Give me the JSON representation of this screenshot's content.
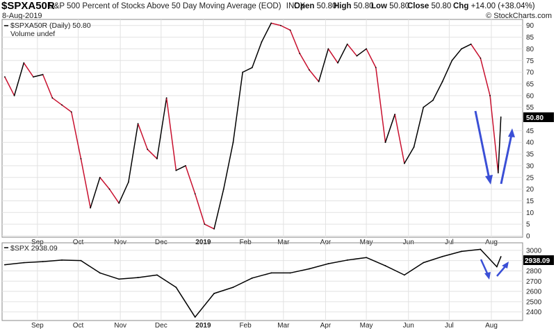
{
  "header": {
    "symbol": "$SPXA50R",
    "description": "S&P 500 Percent of Stocks Above 50 Day Moving Average (EOD)",
    "exchange": "INDX",
    "date": "8-Aug-2019",
    "open_label": "Open",
    "open": "50.80",
    "high_label": "High",
    "high": "50.80",
    "low_label": "Low",
    "low": "50.80",
    "close_label": "Close",
    "close": "50.80",
    "chg_label": "Chg",
    "chg": "+14.00 (+38.04%)",
    "watermark": "© StockCharts.com"
  },
  "colors": {
    "up": "#000000",
    "down": "#c8102e",
    "arrow": "#3a4fd6",
    "grid": "#e2e2e2",
    "price_box": "#000000"
  },
  "chart_data": [
    {
      "type": "line",
      "legend": [
        "$SPXA50R (Daily) 50.80",
        "Volume undef"
      ],
      "last_value": "50.80",
      "ylim": [
        0,
        92
      ],
      "y_ticks": [
        0,
        5,
        10,
        15,
        20,
        25,
        30,
        35,
        40,
        45,
        50,
        55,
        60,
        65,
        70,
        75,
        80,
        85,
        90
      ],
      "x_labels": [
        "Sep",
        "Oct",
        "Nov",
        "Dec",
        "2019",
        "Feb",
        "Mar",
        "Apr",
        "May",
        "Jun",
        "Jul",
        "Aug"
      ],
      "x": [
        "2018-08-08",
        "2018-08-15",
        "2018-08-22",
        "2018-08-29",
        "2018-09-05",
        "2018-09-12",
        "2018-09-19",
        "2018-09-26",
        "2018-10-03",
        "2018-10-10",
        "2018-10-17",
        "2018-10-24",
        "2018-10-31",
        "2018-11-07",
        "2018-11-14",
        "2018-11-21",
        "2018-11-28",
        "2018-12-05",
        "2018-12-12",
        "2018-12-19",
        "2018-12-26",
        "2019-01-02",
        "2019-01-09",
        "2019-01-16",
        "2019-01-23",
        "2019-01-30",
        "2019-02-06",
        "2019-02-13",
        "2019-02-20",
        "2019-02-27",
        "2019-03-06",
        "2019-03-13",
        "2019-03-20",
        "2019-03-27",
        "2019-04-03",
        "2019-04-10",
        "2019-04-17",
        "2019-04-24",
        "2019-05-01",
        "2019-05-08",
        "2019-05-15",
        "2019-05-22",
        "2019-05-29",
        "2019-06-05",
        "2019-06-12",
        "2019-06-19",
        "2019-06-26",
        "2019-07-03",
        "2019-07-10",
        "2019-07-17",
        "2019-07-24",
        "2019-07-31",
        "2019-08-06",
        "2019-08-08"
      ],
      "values": [
        68,
        60,
        74,
        68,
        69,
        59,
        56,
        53,
        33,
        12,
        25,
        20,
        14,
        23,
        48,
        37,
        33,
        59,
        28,
        30,
        18,
        5,
        3,
        20,
        40,
        70,
        72,
        83,
        91,
        90,
        88,
        78,
        71,
        66,
        80,
        74,
        82,
        77,
        80,
        72,
        40,
        52,
        31,
        38,
        55,
        58,
        66,
        75,
        80,
        82,
        76,
        60,
        27,
        50.8
      ]
    },
    {
      "type": "line",
      "legend": [
        "$SPX 2938.09"
      ],
      "last_value": "2938.09",
      "ylim": [
        2330,
        3060
      ],
      "y_ticks": [
        2400,
        2500,
        2600,
        2700,
        2800,
        2900,
        3000
      ],
      "x_labels": [
        "Sep",
        "Oct",
        "Nov",
        "Dec",
        "2019",
        "Feb",
        "Mar",
        "Apr",
        "May",
        "Jun",
        "Jul",
        "Aug"
      ],
      "x": [
        "2018-08-08",
        "2018-08-22",
        "2018-09-05",
        "2018-09-19",
        "2018-10-03",
        "2018-10-17",
        "2018-10-31",
        "2018-11-14",
        "2018-11-28",
        "2018-12-12",
        "2018-12-26",
        "2019-01-09",
        "2019-01-23",
        "2019-02-06",
        "2019-02-20",
        "2019-03-06",
        "2019-03-20",
        "2019-04-03",
        "2019-04-17",
        "2019-05-01",
        "2019-05-15",
        "2019-05-29",
        "2019-06-12",
        "2019-06-26",
        "2019-07-10",
        "2019-07-24",
        "2019-08-05",
        "2019-08-08"
      ],
      "values": [
        2860,
        2880,
        2890,
        2905,
        2900,
        2780,
        2720,
        2735,
        2760,
        2640,
        2350,
        2580,
        2640,
        2730,
        2780,
        2780,
        2820,
        2870,
        2905,
        2930,
        2850,
        2760,
        2880,
        2940,
        2990,
        3010,
        2840,
        2938.09
      ]
    }
  ]
}
